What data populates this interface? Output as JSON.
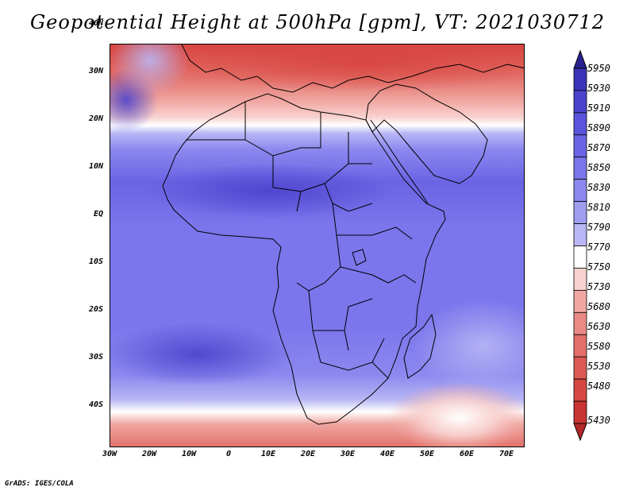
{
  "title": "Geopotential Height at 500hPa [gpm], VT: 2021030712",
  "credit": "GrADS: IGES/COLA",
  "map": {
    "lat_labels": [
      "40N",
      "30N",
      "20N",
      "10N",
      "EQ",
      "10S",
      "20S",
      "30S",
      "40S"
    ],
    "lon_labels": [
      "30W",
      "20W",
      "10W",
      "0",
      "10E",
      "20E",
      "30E",
      "40E",
      "50E",
      "60E",
      "70E"
    ],
    "lon_range": [
      -30,
      75
    ],
    "lat_range": [
      -40,
      45
    ],
    "colors": {
      "deep_red": "#c82a2e",
      "red": "#e05a55",
      "light_red": "#f0a7a2",
      "white": "#ffffff",
      "light_blue": "#b9b7f5",
      "blue": "#7b76ec",
      "deep_blue": "#4b43cc"
    }
  },
  "colorbar": {
    "levels": [
      "5950",
      "5930",
      "5910",
      "5890",
      "5870",
      "5850",
      "5830",
      "5810",
      "5790",
      "5770",
      "5750",
      "5730",
      "5680",
      "5630",
      "5580",
      "5530",
      "5480",
      "5430"
    ],
    "colors": [
      "#2a2190",
      "#3a33b8",
      "#4b43cc",
      "#5a53dc",
      "#6a64e4",
      "#7b76ec",
      "#8c88ef",
      "#a19ef2",
      "#b9b7f5",
      "#ffffff",
      "#f8d2cf",
      "#f0a7a2",
      "#ea8a85",
      "#e36f69",
      "#dd5a54",
      "#d54740",
      "#c83532",
      "#b3262a"
    ]
  }
}
